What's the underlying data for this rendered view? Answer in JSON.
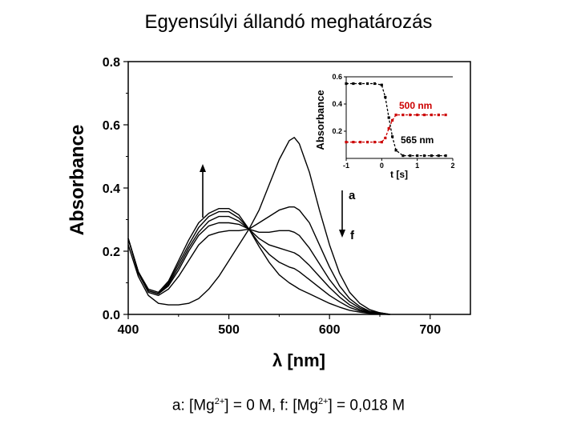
{
  "slide": {
    "title": "Egyensúlyi állandó meghatározás",
    "caption": {
      "a_prefix": "a: [Mg",
      "a_sup": "2+",
      "a_suffix": "] = 0 M, f: [Mg",
      "f_sup": "2+",
      "f_suffix": "] = 0,018 M"
    }
  },
  "chart_data": [
    {
      "type": "line",
      "title": "",
      "xlabel": "λ [nm]",
      "ylabel": "Absorbance",
      "xlim": [
        400,
        740
      ],
      "ylim": [
        0,
        0.8
      ],
      "x_ticks": [
        "400",
        "500",
        "600",
        "700"
      ],
      "y_ticks": [
        "0.0",
        "0.2",
        "0.4",
        "0.6",
        "0.8"
      ],
      "grid": false,
      "annotations": {
        "label_a": "a",
        "label_f": "f",
        "arrow_up_x": 455,
        "arrow_down_x": 528
      },
      "series": [
        {
          "x": [
            400,
            410,
            420,
            430,
            440,
            450,
            460,
            470,
            480,
            490,
            500,
            510,
            520,
            530,
            540,
            550,
            560,
            565,
            570,
            580,
            590,
            600,
            610,
            620,
            630,
            640,
            650,
            660
          ],
          "values": [
            0.22,
            0.12,
            0.06,
            0.035,
            0.03,
            0.03,
            0.035,
            0.05,
            0.08,
            0.12,
            0.17,
            0.22,
            0.27,
            0.33,
            0.41,
            0.49,
            0.55,
            0.56,
            0.54,
            0.45,
            0.33,
            0.22,
            0.13,
            0.07,
            0.035,
            0.015,
            0.005,
            0
          ]
        },
        {
          "x": [
            400,
            410,
            420,
            430,
            440,
            450,
            460,
            470,
            480,
            490,
            500,
            510,
            520,
            530,
            540,
            550,
            560,
            565,
            570,
            580,
            590,
            600,
            610,
            620,
            630,
            640,
            650,
            660
          ],
          "values": [
            0.24,
            0.13,
            0.07,
            0.06,
            0.08,
            0.12,
            0.17,
            0.22,
            0.25,
            0.26,
            0.265,
            0.265,
            0.27,
            0.29,
            0.31,
            0.33,
            0.34,
            0.34,
            0.33,
            0.29,
            0.22,
            0.15,
            0.09,
            0.05,
            0.025,
            0.01,
            0.005,
            0
          ]
        },
        {
          "x": [
            400,
            410,
            420,
            430,
            440,
            450,
            460,
            470,
            480,
            490,
            500,
            510,
            520,
            530,
            540,
            550,
            560,
            565,
            570,
            580,
            590,
            600,
            610,
            620,
            630,
            640,
            650,
            660
          ],
          "values": [
            0.24,
            0.13,
            0.075,
            0.065,
            0.09,
            0.14,
            0.2,
            0.25,
            0.28,
            0.29,
            0.29,
            0.285,
            0.27,
            0.26,
            0.26,
            0.265,
            0.265,
            0.26,
            0.25,
            0.21,
            0.16,
            0.11,
            0.07,
            0.04,
            0.02,
            0.008,
            0.003,
            0
          ]
        },
        {
          "x": [
            400,
            410,
            420,
            430,
            440,
            450,
            460,
            470,
            480,
            490,
            500,
            510,
            520,
            530,
            540,
            550,
            560,
            565,
            570,
            580,
            590,
            600,
            610,
            620,
            630,
            640,
            650,
            660
          ],
          "values": [
            0.24,
            0.135,
            0.075,
            0.065,
            0.095,
            0.15,
            0.21,
            0.26,
            0.295,
            0.31,
            0.31,
            0.295,
            0.27,
            0.24,
            0.22,
            0.21,
            0.2,
            0.195,
            0.185,
            0.155,
            0.12,
            0.085,
            0.055,
            0.03,
            0.015,
            0.006,
            0.002,
            0
          ]
        },
        {
          "x": [
            400,
            410,
            420,
            430,
            440,
            450,
            460,
            470,
            480,
            490,
            500,
            510,
            520,
            530,
            540,
            550,
            560,
            565,
            570,
            580,
            590,
            600,
            610,
            620,
            630,
            640,
            650,
            660
          ],
          "values": [
            0.24,
            0.135,
            0.075,
            0.065,
            0.1,
            0.16,
            0.22,
            0.275,
            0.31,
            0.325,
            0.325,
            0.305,
            0.27,
            0.225,
            0.19,
            0.165,
            0.15,
            0.145,
            0.135,
            0.11,
            0.085,
            0.06,
            0.04,
            0.022,
            0.011,
            0.005,
            0.002,
            0
          ]
        },
        {
          "x": [
            400,
            410,
            420,
            430,
            440,
            450,
            460,
            470,
            480,
            490,
            500,
            510,
            520,
            530,
            540,
            550,
            560,
            565,
            570,
            580,
            590,
            600,
            610,
            620,
            630,
            640,
            650,
            660
          ],
          "values": [
            0.24,
            0.135,
            0.08,
            0.07,
            0.105,
            0.17,
            0.235,
            0.29,
            0.32,
            0.335,
            0.335,
            0.315,
            0.27,
            0.215,
            0.165,
            0.125,
            0.1,
            0.09,
            0.08,
            0.065,
            0.05,
            0.035,
            0.023,
            0.013,
            0.007,
            0.003,
            0.001,
            0
          ]
        }
      ]
    },
    {
      "type": "line",
      "title": "",
      "xlabel": "t [s]",
      "ylabel": "Absorbance",
      "xlim": [
        -1,
        2
      ],
      "ylim": [
        0,
        0.6
      ],
      "x_ticks": [
        "-1",
        "0",
        "1",
        "2"
      ],
      "y_ticks": [
        "0.2",
        "0.4",
        "0.6"
      ],
      "grid": false,
      "series": [
        {
          "name": "500 nm",
          "color": "#cc0000",
          "x": [
            -1,
            -0.8,
            -0.6,
            -0.4,
            -0.2,
            0,
            0.1,
            0.2,
            0.3,
            0.4,
            0.6,
            0.8,
            1,
            1.2,
            1.4,
            1.6,
            1.8
          ],
          "values": [
            0.12,
            0.12,
            0.12,
            0.12,
            0.12,
            0.12,
            0.15,
            0.22,
            0.28,
            0.32,
            0.32,
            0.32,
            0.32,
            0.32,
            0.32,
            0.32,
            0.32
          ]
        },
        {
          "name": "565 nm",
          "color": "#000000",
          "x": [
            -1,
            -0.8,
            -0.6,
            -0.4,
            -0.2,
            0,
            0.1,
            0.2,
            0.3,
            0.4,
            0.6,
            0.8,
            1,
            1.2,
            1.4,
            1.6,
            1.8
          ],
          "values": [
            0.55,
            0.55,
            0.55,
            0.55,
            0.55,
            0.54,
            0.45,
            0.3,
            0.16,
            0.06,
            0.02,
            0.02,
            0.02,
            0.02,
            0.02,
            0.02,
            0.02
          ]
        }
      ]
    }
  ]
}
